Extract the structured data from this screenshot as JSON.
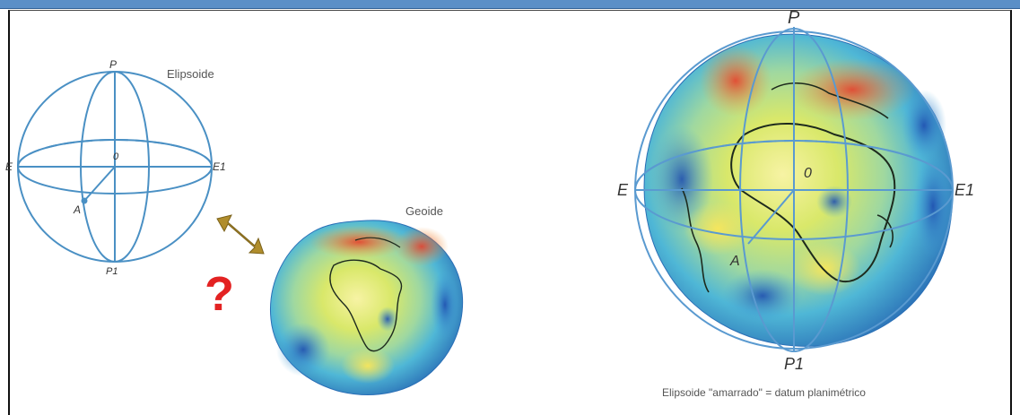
{
  "diagram": {
    "ellipsoid_small": {
      "title": "Elipsoide",
      "labels": {
        "pole_north": "P",
        "pole_south": "P1",
        "east": "E1",
        "west": "E",
        "center": "0",
        "point": "A"
      }
    },
    "geoid": {
      "title": "Geoide"
    },
    "question_mark": "?",
    "anchored_globe": {
      "labels": {
        "pole_north": "P",
        "pole_south": "P1",
        "east": "E1",
        "west": "E",
        "center": "0",
        "point": "A"
      },
      "caption": "Elipsoide \"amarrado\" = datum planimétrico"
    },
    "colors": {
      "frame_bar": "#5b8fc7",
      "ellipsoid_line": "#4a90c4",
      "arrow": "#a8862a",
      "question": "#e32222"
    }
  }
}
